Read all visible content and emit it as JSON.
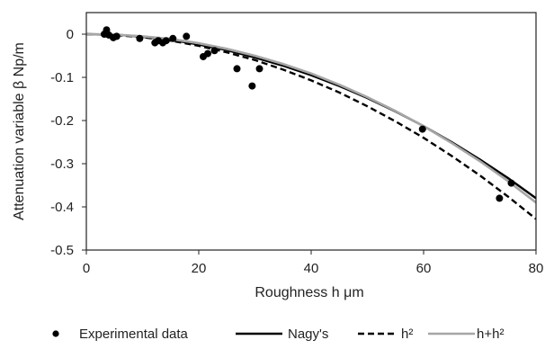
{
  "chart_data": {
    "type": "scatter",
    "title": "",
    "xlabel": "Roughness  h  μm",
    "ylabel": "Attenuation variable β  Np/m",
    "xlim": [
      0,
      80
    ],
    "ylim": [
      -0.5,
      0.05
    ],
    "x_ticks": [
      0,
      20,
      40,
      60,
      80
    ],
    "x_tick_labels": [
      "0",
      "20",
      "40",
      "60",
      "80"
    ],
    "y_ticks": [
      0,
      -0.1,
      -0.2,
      -0.3,
      -0.4,
      -0.5
    ],
    "y_tick_labels": [
      "0",
      "-0.1",
      "-0.2",
      "-0.3",
      "-0.4",
      "-0.5"
    ],
    "grid": false,
    "legend_position": "bottom",
    "series": [
      {
        "name": "Experimental data",
        "kind": "scatter",
        "color": "#000000",
        "x": [
          3.2,
          3.6,
          4.0,
          4.8,
          5.4,
          9.5,
          12.2,
          12.8,
          13.6,
          14.2,
          15.4,
          17.8,
          20.8,
          21.6,
          22.8,
          26.8,
          29.5,
          30.8,
          59.8,
          73.5,
          75.6
        ],
        "y": [
          0.0,
          0.01,
          -0.002,
          -0.008,
          -0.005,
          -0.01,
          -0.02,
          -0.015,
          -0.02,
          -0.015,
          -0.01,
          -0.005,
          -0.052,
          -0.045,
          -0.038,
          -0.08,
          -0.12,
          -0.08,
          -0.22,
          -0.38,
          -0.345
        ]
      },
      {
        "name": "Nagy's",
        "kind": "line",
        "style": "solid",
        "color": "#000000",
        "x": [
          0,
          5,
          10,
          15,
          20,
          25,
          30,
          35,
          40,
          45,
          50,
          55,
          60,
          65,
          70,
          75,
          80
        ],
        "y": [
          0,
          -0.001,
          -0.006,
          -0.013,
          -0.024,
          -0.037,
          -0.054,
          -0.073,
          -0.095,
          -0.12,
          -0.148,
          -0.179,
          -0.213,
          -0.25,
          -0.29,
          -0.333,
          -0.38
        ]
      },
      {
        "name": "h²",
        "kind": "line",
        "style": "dashed",
        "color": "#000000",
        "x": [
          0,
          5,
          10,
          15,
          20,
          25,
          30,
          35,
          40,
          45,
          50,
          55,
          60,
          65,
          70,
          75,
          80
        ],
        "y": [
          0,
          -0.002,
          -0.007,
          -0.015,
          -0.027,
          -0.042,
          -0.06,
          -0.082,
          -0.107,
          -0.135,
          -0.167,
          -0.202,
          -0.24,
          -0.282,
          -0.327,
          -0.376,
          -0.428
        ]
      },
      {
        "name": "h+h²",
        "kind": "line",
        "style": "solid",
        "color": "#a6a6a6",
        "x": [
          0,
          5,
          10,
          15,
          20,
          25,
          30,
          35,
          40,
          45,
          50,
          55,
          60,
          65,
          70,
          75,
          80
        ],
        "y": [
          0,
          -0.001,
          -0.005,
          -0.011,
          -0.021,
          -0.034,
          -0.05,
          -0.069,
          -0.091,
          -0.117,
          -0.146,
          -0.178,
          -0.213,
          -0.252,
          -0.294,
          -0.34,
          -0.39
        ]
      }
    ],
    "legend": {
      "entries": [
        {
          "label": "Experimental data",
          "symbol": "dot",
          "color": "#000000"
        },
        {
          "label": "Nagy's",
          "symbol": "solid-line",
          "color": "#000000"
        },
        {
          "label": "h²",
          "symbol": "dashed-line",
          "color": "#000000"
        },
        {
          "label": "h+h²",
          "symbol": "solid-line",
          "color": "#a6a6a6"
        }
      ]
    }
  }
}
